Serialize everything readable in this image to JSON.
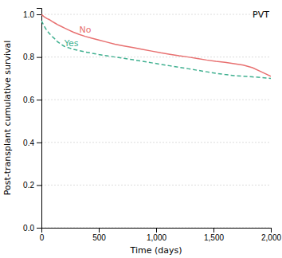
{
  "chart_data": {
    "type": "line",
    "xlabel": "Time (days)",
    "ylabel": "Post-transplant cumulative survival",
    "xlim": [
      0,
      2000
    ],
    "ylim": [
      0.0,
      1.03
    ],
    "xticks": [
      0,
      500,
      {
        "value": 1000,
        "label": "1,000"
      },
      {
        "value": 1500,
        "label": "1,500"
      },
      {
        "value": 2000,
        "label": "2,000"
      }
    ],
    "yticks": [
      {
        "value": 0.0,
        "label": "0.0"
      },
      0.2,
      0.4,
      0.6,
      0.8,
      {
        "value": 1.0,
        "label": "1.0"
      }
    ],
    "grid": "y",
    "series": [
      {
        "color": "#e87070",
        "line_style": "solid",
        "x": [
          0,
          10,
          20,
          35,
          50,
          70,
          90,
          115,
          140,
          170,
          200,
          240,
          280,
          330,
          380,
          440,
          500,
          570,
          640,
          720,
          800,
          880,
          960,
          1040,
          1120,
          1200,
          1280,
          1360,
          1440,
          1520,
          1600,
          1680,
          1760,
          1840,
          1920,
          2000
        ],
        "values": [
          1.0,
          0.995,
          0.99,
          0.985,
          0.98,
          0.975,
          0.968,
          0.96,
          0.952,
          0.944,
          0.936,
          0.926,
          0.916,
          0.906,
          0.897,
          0.888,
          0.88,
          0.87,
          0.86,
          0.852,
          0.844,
          0.836,
          0.828,
          0.82,
          0.813,
          0.806,
          0.8,
          0.793,
          0.786,
          0.78,
          0.775,
          0.769,
          0.762,
          0.75,
          0.73,
          0.71
        ]
      },
      {
        "color": "#40b090",
        "line_style": "dashed",
        "x": [
          0,
          10,
          20,
          35,
          50,
          70,
          90,
          115,
          140,
          170,
          200,
          240,
          280,
          330,
          380,
          440,
          500,
          570,
          640,
          720,
          800,
          880,
          960,
          1040,
          1120,
          1200,
          1280,
          1360,
          1440,
          1520,
          1600,
          1680,
          1760,
          1840,
          1920,
          2000
        ],
        "values": [
          0.97,
          0.96,
          0.948,
          0.935,
          0.922,
          0.91,
          0.898,
          0.886,
          0.872,
          0.86,
          0.85,
          0.843,
          0.836,
          0.83,
          0.824,
          0.818,
          0.812,
          0.806,
          0.8,
          0.794,
          0.787,
          0.78,
          0.773,
          0.766,
          0.759,
          0.752,
          0.745,
          0.738,
          0.731,
          0.724,
          0.718,
          0.713,
          0.71,
          0.707,
          0.704,
          0.7
        ]
      }
    ],
    "annotations": [
      {
        "text": "No",
        "x": 330,
        "y": 0.905,
        "color": "#e87070"
      },
      {
        "text": "Yes",
        "x": 200,
        "y": 0.845,
        "color": "#40b090"
      },
      {
        "text": "PVT"
      }
    ]
  }
}
